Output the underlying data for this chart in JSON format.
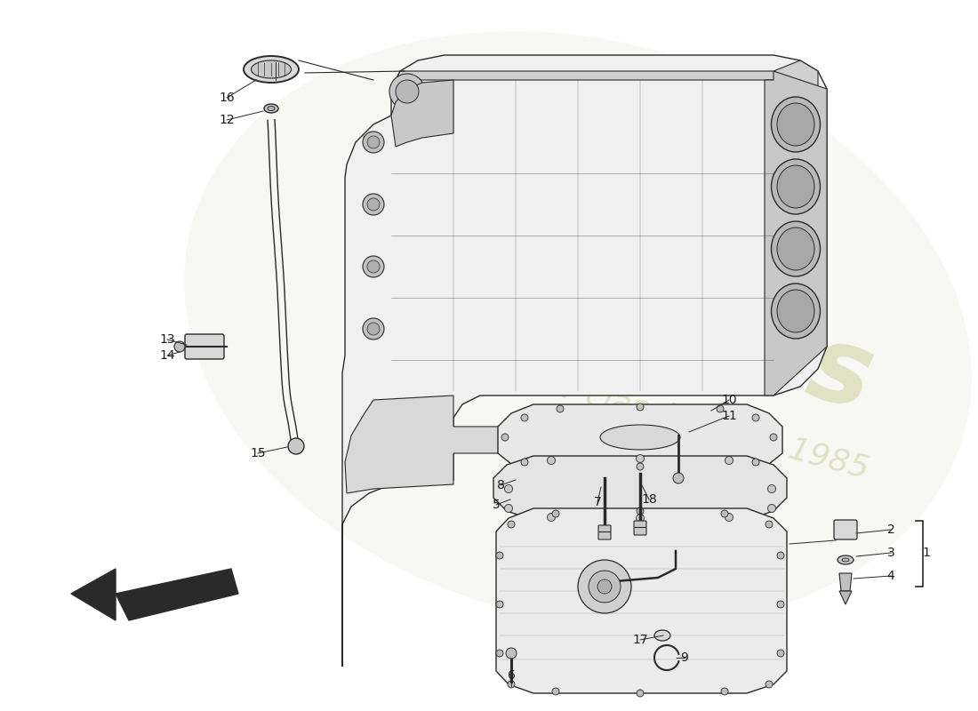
{
  "background_color": "#ffffff",
  "watermark_color": "#e8e8be",
  "line_color": "#2a2a2a",
  "text_color": "#1a1a1a",
  "label_fontsize": 10,
  "engine_gray": "#d8d8d8",
  "pan_gray": "#e8e8e8",
  "gradient_color": "#ececec"
}
